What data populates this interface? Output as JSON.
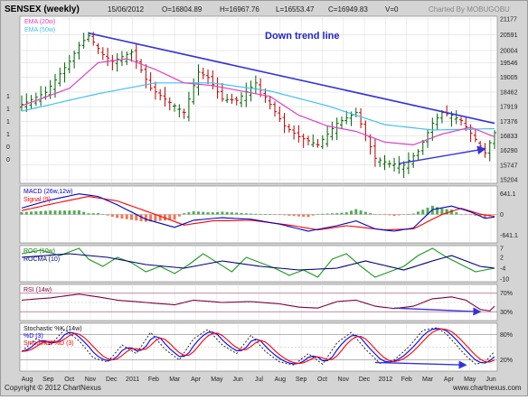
{
  "header": {
    "symbol": "SENSEX (weekly)",
    "date": "15/06/2012",
    "open": "O=16804.89",
    "high": "H=16967.76",
    "low": "L=16553.47",
    "close": "C=16949.83",
    "volume": "V=0",
    "credit": "Charted By MOBUGOBU"
  },
  "footer": {
    "copyright": "Copyright © 2012 ChartNexus",
    "website": "www.chartnexus.com"
  },
  "colors": {
    "panel_bg": "#ffffff",
    "frame_bg": "#d4d4d4",
    "up_candle": "#006400",
    "down_candle": "#c00000",
    "ema20": "#e040c0",
    "ema50": "#40c0f0",
    "trendline": "#3333dd",
    "macd": "#0000cc",
    "signal": "#ff0000",
    "roc": "#1a9a1a",
    "rocma": "#000080",
    "rsi": "#800040",
    "stoch_k": "#111111",
    "stoch_d": "#0000ff",
    "stoch_sd": "#ff0000",
    "hist_up": "#55aa55",
    "hist_down": "#ee7755"
  },
  "chart_data": [
    {
      "type": "candlestick",
      "title": "SENSEX (weekly)",
      "legend": [
        "EMA (20w)",
        "EMA (50w)"
      ],
      "annotation": "Down trend line",
      "ylim": [
        15204,
        21177
      ],
      "y_ticks": [
        21177,
        20591,
        20004,
        19546,
        19005,
        18462,
        17919,
        17376,
        16833,
        16290,
        15747,
        15204
      ],
      "left_ticks": [
        "1",
        "1",
        "1",
        "1",
        "0",
        "0"
      ],
      "x_labels": [
        "Aug",
        "Sep",
        "Oct",
        "Nov",
        "Dec",
        "2011",
        "Feb",
        "Mar",
        "Apr",
        "May",
        "Jun",
        "Jul",
        "Aug",
        "Sep",
        "Oct",
        "Nov",
        "Dec",
        "2012",
        "Feb",
        "Mar",
        "Apr",
        "May",
        "Jun"
      ],
      "weeks": 100,
      "close_anchors": [
        [
          0,
          18000
        ],
        [
          5,
          18450
        ],
        [
          10,
          19600
        ],
        [
          12,
          20200
        ],
        [
          14,
          20550
        ],
        [
          17,
          19850
        ],
        [
          19,
          19600
        ],
        [
          23,
          19950
        ],
        [
          27,
          18600
        ],
        [
          30,
          18200
        ],
        [
          34,
          17700
        ],
        [
          37,
          19200
        ],
        [
          39,
          19000
        ],
        [
          42,
          18200
        ],
        [
          45,
          18150
        ],
        [
          49,
          18800
        ],
        [
          52,
          18000
        ],
        [
          55,
          17200
        ],
        [
          58,
          16800
        ],
        [
          62,
          16500
        ],
        [
          66,
          17300
        ],
        [
          70,
          17700
        ],
        [
          74,
          16000
        ],
        [
          77,
          15800
        ],
        [
          80,
          15750
        ],
        [
          83,
          16250
        ],
        [
          86,
          17300
        ],
        [
          88,
          17700
        ],
        [
          90,
          17600
        ],
        [
          92,
          17400
        ],
        [
          95,
          16700
        ],
        [
          97,
          16200
        ],
        [
          99,
          16950
        ]
      ],
      "ema20_anchors": [
        [
          0,
          17950
        ],
        [
          10,
          18600
        ],
        [
          16,
          19550
        ],
        [
          22,
          19700
        ],
        [
          28,
          19300
        ],
        [
          34,
          18800
        ],
        [
          40,
          18700
        ],
        [
          46,
          18500
        ],
        [
          52,
          18300
        ],
        [
          58,
          17600
        ],
        [
          64,
          17200
        ],
        [
          70,
          17000
        ],
        [
          76,
          16600
        ],
        [
          82,
          16500
        ],
        [
          88,
          16900
        ],
        [
          94,
          17150
        ],
        [
          99,
          16800
        ]
      ],
      "ema50_anchors": [
        [
          0,
          17750
        ],
        [
          16,
          18400
        ],
        [
          28,
          18800
        ],
        [
          40,
          18800
        ],
        [
          52,
          18500
        ],
        [
          64,
          17950
        ],
        [
          76,
          17250
        ],
        [
          86,
          17050
        ],
        [
          99,
          17100
        ]
      ],
      "trendline": [
        [
          14,
          20650
        ],
        [
          99,
          17300
        ]
      ],
      "support_arrow": [
        [
          79,
          15800
        ],
        [
          97,
          16350
        ]
      ]
    },
    {
      "type": "line",
      "title": "MACD (26w,12w)",
      "series": [
        {
          "name": "MACD (26w,12w)"
        },
        {
          "name": "Signal (9)"
        }
      ],
      "y_ticks": [
        "641.1",
        "0",
        "-641.1"
      ],
      "macd_anchors": [
        [
          0,
          200
        ],
        [
          6,
          450
        ],
        [
          12,
          640
        ],
        [
          16,
          560
        ],
        [
          20,
          300
        ],
        [
          26,
          -150
        ],
        [
          32,
          -400
        ],
        [
          36,
          -180
        ],
        [
          42,
          -100
        ],
        [
          48,
          -150
        ],
        [
          54,
          -300
        ],
        [
          60,
          -520
        ],
        [
          66,
          -350
        ],
        [
          70,
          -200
        ],
        [
          74,
          -450
        ],
        [
          78,
          -520
        ],
        [
          82,
          -420
        ],
        [
          86,
          150
        ],
        [
          90,
          260
        ],
        [
          94,
          80
        ],
        [
          97,
          -120
        ],
        [
          99,
          -80
        ]
      ],
      "signal_anchors": [
        [
          0,
          120
        ],
        [
          8,
          380
        ],
        [
          14,
          560
        ],
        [
          20,
          420
        ],
        [
          28,
          0
        ],
        [
          34,
          -330
        ],
        [
          40,
          -200
        ],
        [
          48,
          -180
        ],
        [
          56,
          -330
        ],
        [
          62,
          -480
        ],
        [
          68,
          -350
        ],
        [
          76,
          -480
        ],
        [
          82,
          -450
        ],
        [
          88,
          0
        ],
        [
          92,
          190
        ],
        [
          96,
          10
        ],
        [
          99,
          -60
        ]
      ]
    },
    {
      "type": "line",
      "title": "ROC (10w)",
      "series": [
        {
          "name": "ROC (10w)"
        },
        {
          "name": "ROCMA (10)"
        }
      ],
      "y_ticks": [
        "7",
        "2",
        "-4",
        "-10"
      ],
      "roc_anchors": [
        [
          0,
          4
        ],
        [
          4,
          6
        ],
        [
          8,
          3
        ],
        [
          12,
          7
        ],
        [
          14,
          1
        ],
        [
          17,
          -3
        ],
        [
          20,
          2
        ],
        [
          23,
          -1
        ],
        [
          26,
          -6
        ],
        [
          29,
          -3
        ],
        [
          32,
          -7
        ],
        [
          35,
          -2
        ],
        [
          38,
          4
        ],
        [
          41,
          -1
        ],
        [
          44,
          -6
        ],
        [
          47,
          2
        ],
        [
          50,
          -1
        ],
        [
          53,
          -4
        ],
        [
          56,
          -8
        ],
        [
          59,
          -5
        ],
        [
          62,
          -9
        ],
        [
          65,
          1
        ],
        [
          68,
          4
        ],
        [
          71,
          -3
        ],
        [
          74,
          -9
        ],
        [
          77,
          -6
        ],
        [
          80,
          -3
        ],
        [
          83,
          3
        ],
        [
          86,
          7
        ],
        [
          89,
          2
        ],
        [
          92,
          -2
        ],
        [
          95,
          -6
        ],
        [
          97,
          -5
        ],
        [
          99,
          -4
        ]
      ],
      "rocma_anchors": [
        [
          0,
          2
        ],
        [
          10,
          4
        ],
        [
          18,
          2
        ],
        [
          26,
          -2
        ],
        [
          34,
          -4
        ],
        [
          42,
          0
        ],
        [
          50,
          -3
        ],
        [
          58,
          -5
        ],
        [
          66,
          -4
        ],
        [
          72,
          0
        ],
        [
          80,
          -5
        ],
        [
          86,
          0
        ],
        [
          90,
          3
        ],
        [
          96,
          -3
        ],
        [
          99,
          -4
        ]
      ]
    },
    {
      "type": "line",
      "title": "RSI (14w)",
      "series": [
        {
          "name": "RSI (14w)"
        }
      ],
      "y_ticks": [
        "70%",
        "30%"
      ],
      "ylim": [
        15,
        85
      ],
      "rsi_anchors": [
        [
          0,
          55
        ],
        [
          6,
          60
        ],
        [
          12,
          68
        ],
        [
          16,
          62
        ],
        [
          20,
          55
        ],
        [
          26,
          50
        ],
        [
          32,
          45
        ],
        [
          36,
          55
        ],
        [
          42,
          50
        ],
        [
          48,
          52
        ],
        [
          54,
          47
        ],
        [
          58,
          40
        ],
        [
          62,
          38
        ],
        [
          66,
          52
        ],
        [
          70,
          55
        ],
        [
          74,
          42
        ],
        [
          78,
          37
        ],
        [
          82,
          42
        ],
        [
          86,
          58
        ],
        [
          90,
          62
        ],
        [
          93,
          55
        ],
        [
          96,
          35
        ],
        [
          98,
          32
        ],
        [
          99,
          42
        ]
      ],
      "divergence_arrow": [
        [
          78,
          38
        ],
        [
          96,
          30
        ]
      ]
    },
    {
      "type": "line",
      "title": "Stochastic %K (14w)",
      "series": [
        {
          "name": "Stochastic %K (14w)"
        },
        {
          "name": "%D (3)"
        },
        {
          "name": "Smoothed %D (3)"
        }
      ],
      "y_ticks": [
        "80%",
        "20%"
      ],
      "ylim": [
        0,
        100
      ],
      "k_anchors": [
        [
          0,
          40
        ],
        [
          3,
          70
        ],
        [
          6,
          55
        ],
        [
          9,
          92
        ],
        [
          12,
          65
        ],
        [
          15,
          25
        ],
        [
          18,
          15
        ],
        [
          21,
          55
        ],
        [
          24,
          35
        ],
        [
          27,
          85
        ],
        [
          30,
          45
        ],
        [
          33,
          20
        ],
        [
          36,
          70
        ],
        [
          39,
          92
        ],
        [
          42,
          55
        ],
        [
          45,
          35
        ],
        [
          48,
          78
        ],
        [
          51,
          40
        ],
        [
          54,
          15
        ],
        [
          57,
          8
        ],
        [
          60,
          35
        ],
        [
          63,
          10
        ],
        [
          66,
          60
        ],
        [
          69,
          85
        ],
        [
          72,
          45
        ],
        [
          75,
          12
        ],
        [
          78,
          20
        ],
        [
          81,
          50
        ],
        [
          84,
          90
        ],
        [
          87,
          96
        ],
        [
          89,
          80
        ],
        [
          91,
          55
        ],
        [
          93,
          30
        ],
        [
          95,
          10
        ],
        [
          97,
          15
        ],
        [
          99,
          40
        ]
      ],
      "divergence_arrow": [
        [
          74,
          14
        ],
        [
          93,
          8
        ]
      ]
    }
  ]
}
